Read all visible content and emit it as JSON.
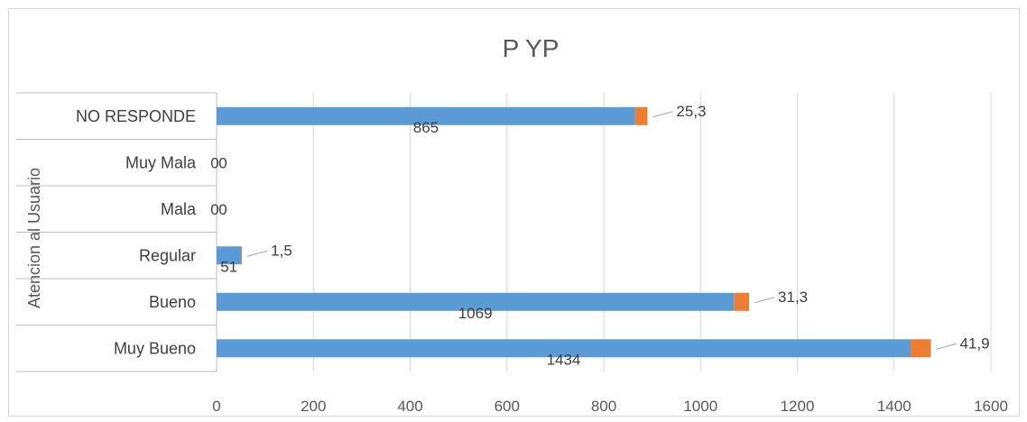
{
  "chart_data": {
    "type": "bar",
    "orientation": "horizontal",
    "stacked": true,
    "title": "P YP",
    "ylabel": "Atencion al Usuario",
    "xlabel": "",
    "xlim": [
      0,
      1600
    ],
    "x_ticks": [
      "0",
      "200",
      "400",
      "600",
      "800",
      "1000",
      "1200",
      "1400",
      "1600"
    ],
    "grid": true,
    "legend": "none",
    "categories": [
      "NO RESPONDE",
      "Muy Mala",
      "Mala",
      "Regular",
      "Bueno",
      "Muy Bueno"
    ],
    "series": [
      {
        "values": [
          865,
          0,
          0,
          51,
          1069,
          1434
        ],
        "labels": [
          "865",
          "0",
          "0",
          "51",
          "1069",
          "1434"
        ],
        "color": "#5b9bd5"
      },
      {
        "values": [
          25.3,
          0,
          0,
          1.5,
          31.3,
          41.9
        ],
        "labels": [
          "25,3",
          "0",
          "0",
          "1,5",
          "31,3",
          "41,9"
        ],
        "color": "#ed7d31"
      }
    ]
  }
}
